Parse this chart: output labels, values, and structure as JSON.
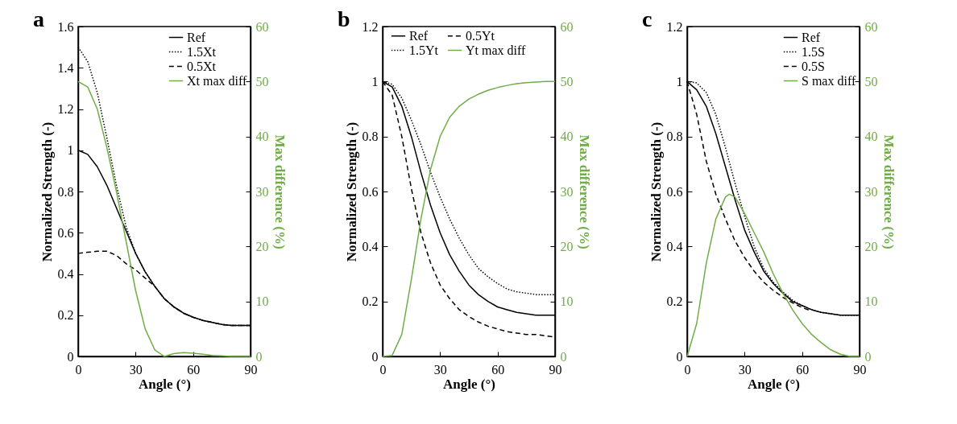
{
  "chart_data": [
    {
      "type": "line",
      "title": "a",
      "xlabel": "Angle (°)",
      "ylabel": "Normalized Strength (-)",
      "y2label": "Max difference (%)",
      "x": [
        0,
        5,
        10,
        15,
        20,
        25,
        30,
        35,
        40,
        45,
        50,
        55,
        60,
        65,
        70,
        75,
        80,
        85,
        90
      ],
      "xlim": [
        0,
        90
      ],
      "xticks": [
        0,
        30,
        60,
        90
      ],
      "ylim": [
        0,
        1.6
      ],
      "yticks": [
        0,
        0.2,
        0.4,
        0.6,
        0.8,
        1,
        1.2,
        1.4,
        1.6
      ],
      "y2lim": [
        0,
        60
      ],
      "y2ticks": [
        0,
        10,
        20,
        30,
        40,
        50,
        60
      ],
      "grid": false,
      "legend": "top right",
      "marker": "none",
      "series": [
        {
          "name": "Ref",
          "color": "#000000",
          "line_style": "solid",
          "values": [
            1.0,
            0.98,
            0.92,
            0.83,
            0.72,
            0.61,
            0.5,
            0.41,
            0.34,
            0.28,
            0.24,
            0.21,
            0.19,
            0.175,
            0.165,
            0.155,
            0.15,
            0.15,
            0.15
          ]
        },
        {
          "name": "1.5Xt",
          "color": "#000000",
          "line_style": "dotted",
          "values": [
            1.5,
            1.43,
            1.28,
            1.06,
            0.83,
            0.63,
            0.5,
            0.41,
            0.34,
            0.28,
            0.24,
            0.21,
            0.19,
            0.175,
            0.165,
            0.155,
            0.15,
            0.15,
            0.15
          ]
        },
        {
          "name": "0.5Xt",
          "color": "#000000",
          "line_style": "dashed",
          "values": [
            0.5,
            0.505,
            0.51,
            0.51,
            0.49,
            0.45,
            0.42,
            0.38,
            0.34,
            0.28,
            0.24,
            0.21,
            0.19,
            0.175,
            0.165,
            0.155,
            0.15,
            0.15,
            0.15
          ]
        },
        {
          "name": "Xt max diff",
          "color": "#70ad47",
          "line_style": "solid",
          "axis": "y2",
          "values": [
            50,
            49,
            45,
            38,
            30,
            21,
            12,
            5,
            1.2,
            0,
            0.5,
            0.7,
            0.6,
            0.4,
            0.2,
            0.1,
            0,
            0,
            0
          ]
        }
      ]
    },
    {
      "type": "line",
      "title": "b",
      "xlabel": "Angle (°)",
      "ylabel": "Normalized Strength (-)",
      "y2label": "Max difference (%)",
      "x": [
        0,
        5,
        10,
        15,
        20,
        25,
        30,
        35,
        40,
        45,
        50,
        55,
        60,
        65,
        70,
        75,
        80,
        85,
        90
      ],
      "xlim": [
        0,
        90
      ],
      "xticks": [
        0,
        30,
        60,
        90
      ],
      "ylim": [
        0,
        1.2
      ],
      "yticks": [
        0,
        0.2,
        0.4,
        0.6,
        0.8,
        1,
        1.2
      ],
      "y2lim": [
        0,
        60
      ],
      "y2ticks": [
        0,
        10,
        20,
        30,
        40,
        50,
        60
      ],
      "grid": false,
      "legend": "top",
      "marker": "none",
      "series": [
        {
          "name": "Ref",
          "color": "#000000",
          "line_style": "solid",
          "values": [
            1.0,
            0.98,
            0.91,
            0.8,
            0.67,
            0.55,
            0.45,
            0.37,
            0.31,
            0.26,
            0.225,
            0.2,
            0.18,
            0.17,
            0.16,
            0.155,
            0.15,
            0.15,
            0.15
          ]
        },
        {
          "name": "1.5Yt",
          "color": "#000000",
          "line_style": "dotted",
          "values": [
            1.0,
            0.99,
            0.94,
            0.86,
            0.77,
            0.67,
            0.58,
            0.5,
            0.43,
            0.37,
            0.32,
            0.29,
            0.265,
            0.245,
            0.235,
            0.23,
            0.225,
            0.225,
            0.225
          ]
        },
        {
          "name": "0.5Yt",
          "color": "#000000",
          "line_style": "dashed",
          "values": [
            1.0,
            0.95,
            0.8,
            0.61,
            0.45,
            0.34,
            0.26,
            0.21,
            0.17,
            0.145,
            0.125,
            0.11,
            0.1,
            0.09,
            0.085,
            0.08,
            0.08,
            0.075,
            0.07
          ]
        },
        {
          "name": "Yt max diff",
          "color": "#70ad47",
          "line_style": "solid",
          "axis": "y2",
          "values": [
            0,
            0.2,
            4,
            14,
            25,
            34,
            40,
            43.5,
            45.5,
            46.8,
            47.7,
            48.4,
            48.9,
            49.3,
            49.6,
            49.8,
            49.9,
            50,
            50
          ]
        }
      ]
    },
    {
      "type": "line",
      "title": "c",
      "xlabel": "Angle (°)",
      "ylabel": "Normalized Strength (-)",
      "y2label": "Max difference (%)",
      "x": [
        0,
        5,
        10,
        15,
        20,
        25,
        30,
        35,
        40,
        45,
        50,
        55,
        60,
        65,
        70,
        75,
        80,
        85,
        90
      ],
      "xlim": [
        0,
        90
      ],
      "xticks": [
        0,
        30,
        60,
        90
      ],
      "ylim": [
        0,
        1.2
      ],
      "yticks": [
        0,
        0.2,
        0.4,
        0.6,
        0.8,
        1,
        1.2
      ],
      "y2lim": [
        0,
        60
      ],
      "y2ticks": [
        0,
        10,
        20,
        30,
        40,
        50,
        60
      ],
      "grid": false,
      "legend": "top right",
      "marker": "none",
      "series": [
        {
          "name": "Ref",
          "color": "#000000",
          "line_style": "solid",
          "values": [
            1.0,
            0.97,
            0.91,
            0.81,
            0.69,
            0.57,
            0.46,
            0.38,
            0.31,
            0.265,
            0.23,
            0.2,
            0.185,
            0.17,
            0.16,
            0.155,
            0.15,
            0.15,
            0.15
          ]
        },
        {
          "name": "1.5S",
          "color": "#000000",
          "line_style": "dotted",
          "values": [
            1.0,
            0.995,
            0.96,
            0.88,
            0.76,
            0.63,
            0.51,
            0.4,
            0.32,
            0.27,
            0.235,
            0.205,
            0.185,
            0.17,
            0.16,
            0.155,
            0.15,
            0.15,
            0.15
          ]
        },
        {
          "name": "0.5S",
          "color": "#000000",
          "line_style": "dashed",
          "values": [
            1.0,
            0.88,
            0.71,
            0.59,
            0.5,
            0.42,
            0.36,
            0.31,
            0.27,
            0.24,
            0.215,
            0.195,
            0.178,
            0.165,
            null,
            null,
            null,
            null,
            null
          ]
        },
        {
          "name": "S max diff",
          "color": "#70ad47",
          "line_style": "solid",
          "axis": "y2",
          "x": [
            0,
            5,
            10,
            15,
            20,
            22,
            25,
            30,
            35,
            40,
            45,
            50,
            55,
            60,
            65,
            70,
            75,
            80,
            85,
            90
          ],
          "values": [
            0,
            6,
            17,
            25,
            29,
            29.5,
            29,
            26,
            22.5,
            19,
            15,
            11.5,
            8.5,
            6,
            4,
            2.5,
            1.2,
            0.4,
            0,
            0
          ]
        }
      ]
    }
  ]
}
